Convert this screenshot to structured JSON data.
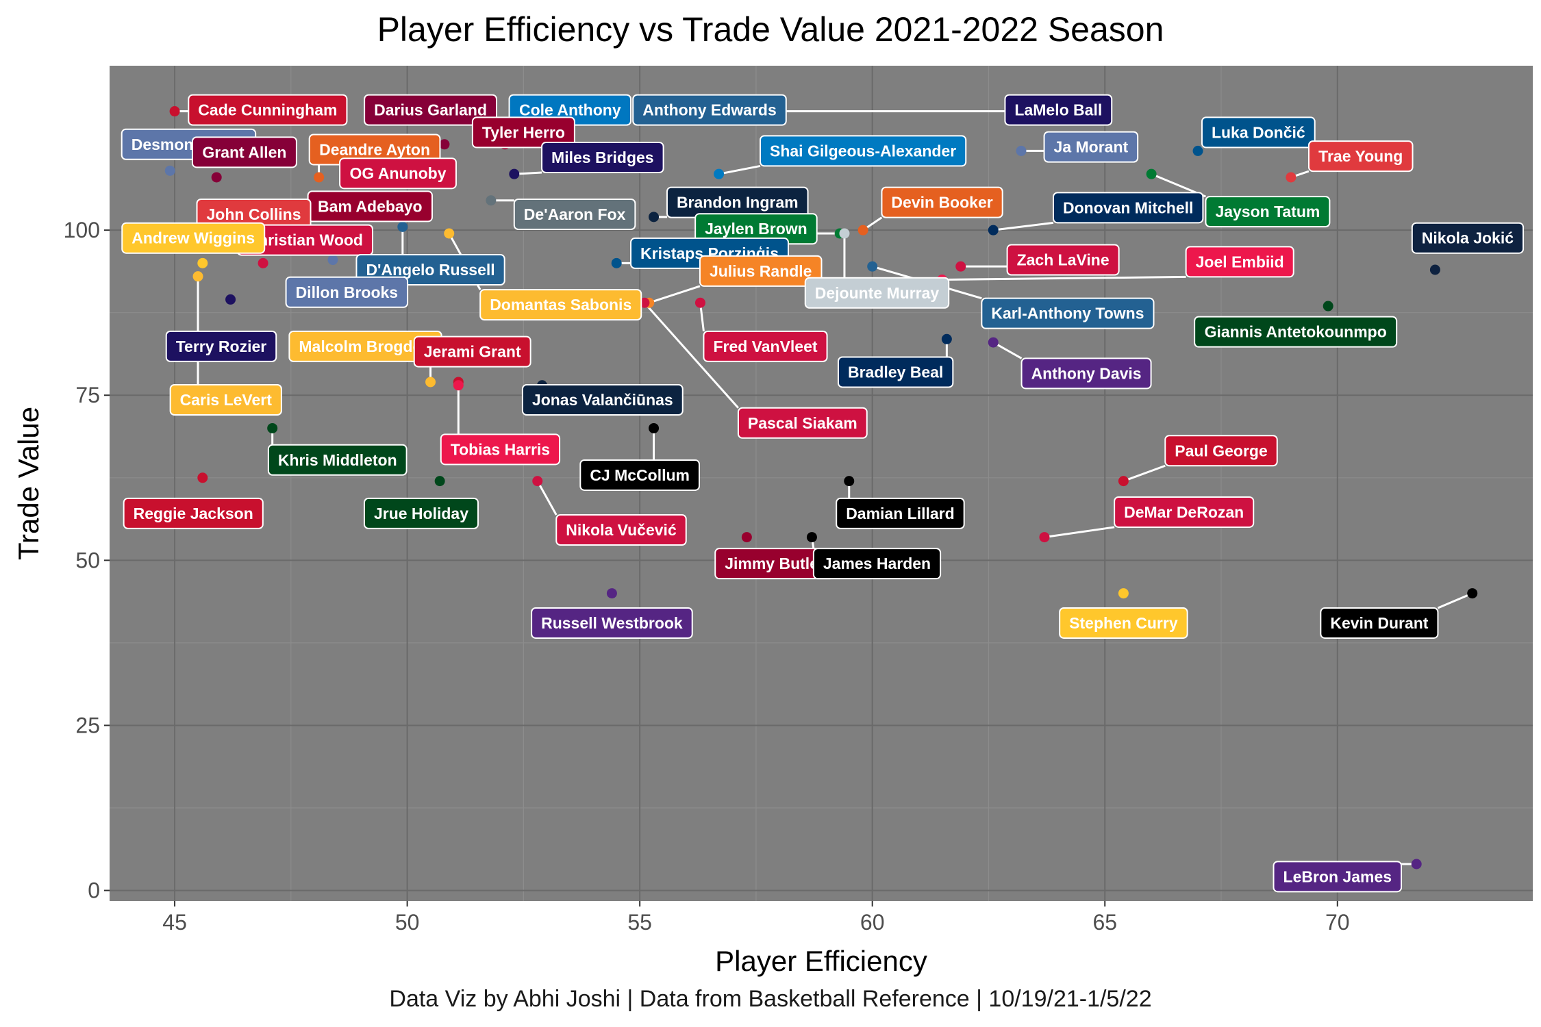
{
  "chart_data": {
    "type": "scatter",
    "title": "Player Efficiency vs Trade Value 2021-2022 Season",
    "caption": "Data Viz by Abhi Joshi | Data from Basketball Reference | 10/19/21-1/5/22",
    "xlabel": "Player Efficiency",
    "ylabel": "Trade Value",
    "xlim": [
      43.6,
      74.2
    ],
    "ylim": [
      -1.6,
      124.9
    ],
    "xticks": [
      45,
      50,
      55,
      60,
      65,
      70
    ],
    "yticks": [
      0,
      25,
      50,
      75,
      100
    ],
    "grid": true,
    "points": [
      {
        "name": "Cade Cunningham",
        "x": 45.0,
        "y": 118,
        "color": "#C8102E"
      },
      {
        "name": "Darius Garland",
        "x": 50.8,
        "y": 113,
        "color": "#860038"
      },
      {
        "name": "Cole Anthony",
        "x": 53.3,
        "y": 115,
        "color": "#0077C0"
      },
      {
        "name": "Anthony Edwards",
        "x": 56.7,
        "y": 118,
        "color": "#236192"
      },
      {
        "name": "LaMelo Ball",
        "x": 56.7,
        "y": 118,
        "color": "#1D1160"
      },
      {
        "name": "Tyler Herro",
        "x": 52.1,
        "y": 113,
        "color": "#98002E"
      },
      {
        "name": "Desmond Bane",
        "x": 44.9,
        "y": 109,
        "color": "#5D76A9"
      },
      {
        "name": "Deandre Ayton",
        "x": 48.1,
        "y": 108,
        "color": "#E56020"
      },
      {
        "name": "Grant Allen",
        "x": 45.9,
        "y": 108,
        "color": "#860038"
      },
      {
        "name": "OG Anunoby",
        "x": 50.3,
        "y": 104.5,
        "color": "#CE1141"
      },
      {
        "name": "Miles Bridges",
        "x": 52.3,
        "y": 108.5,
        "color": "#1D1160"
      },
      {
        "name": "Shai Gilgeous-Alexander",
        "x": 56.7,
        "y": 108.5,
        "color": "#007AC1"
      },
      {
        "name": "Ja Morant",
        "x": 63.2,
        "y": 112,
        "color": "#5D76A9"
      },
      {
        "name": "Luka Dončić",
        "x": 67.0,
        "y": 112,
        "color": "#00538C"
      },
      {
        "name": "Trae Young",
        "x": 69.0,
        "y": 108,
        "color": "#E03A3E"
      },
      {
        "name": "Jayson Tatum",
        "x": 66.0,
        "y": 108.5,
        "color": "#007A33"
      },
      {
        "name": "Bam Adebayo",
        "x": 49.0,
        "y": 104,
        "color": "#98002E"
      },
      {
        "name": "De'Aaron Fox",
        "x": 51.8,
        "y": 104.5,
        "color": "#63727A"
      },
      {
        "name": "Brandon Ingram",
        "x": 55.3,
        "y": 102,
        "color": "#0C2340"
      },
      {
        "name": "Devin Booker",
        "x": 59.8,
        "y": 100,
        "color": "#E56020"
      },
      {
        "name": "Donovan Mitchell",
        "x": 62.6,
        "y": 100,
        "color": "#002B5C"
      },
      {
        "name": "John Collins",
        "x": 46.3,
        "y": 104,
        "color": "#E03A3E"
      },
      {
        "name": "Christian Wood",
        "x": 46.9,
        "y": 95,
        "color": "#CE1141"
      },
      {
        "name": "Andrew Wiggins",
        "x": 45.6,
        "y": 95,
        "color": "#FFC72C"
      },
      {
        "name": "D'Angelo Russell",
        "x": 49.9,
        "y": 100.5,
        "color": "#236192"
      },
      {
        "name": "Jaylen Brown",
        "x": 59.3,
        "y": 99.5,
        "color": "#007A33"
      },
      {
        "name": "Kristaps Porziņģis",
        "x": 54.5,
        "y": 95,
        "color": "#00538C"
      },
      {
        "name": "Zach LaVine",
        "x": 61.9,
        "y": 94.5,
        "color": "#CE1141"
      },
      {
        "name": "Nikola Jokić",
        "x": 72.1,
        "y": 94,
        "color": "#0E2240"
      },
      {
        "name": "Julius Randle",
        "x": 55.2,
        "y": 89,
        "color": "#F58426"
      },
      {
        "name": "Dejounte Murray",
        "x": 59.4,
        "y": 99.5,
        "color": "#C4CED4"
      },
      {
        "name": "Joel Embiid",
        "x": 61.5,
        "y": 92.5,
        "color": "#ED174C"
      },
      {
        "name": "Karl-Anthony Towns",
        "x": 60.0,
        "y": 94.5,
        "color": "#236192"
      },
      {
        "name": "Terry Rozier",
        "x": 46.2,
        "y": 89.5,
        "color": "#1D1160"
      },
      {
        "name": "Dillon Brooks",
        "x": 48.4,
        "y": 95.5,
        "color": "#5D76A9"
      },
      {
        "name": "Domantas Sabonis",
        "x": 50.9,
        "y": 99.5,
        "color": "#FDBB30"
      },
      {
        "name": "Giannis Antetokounmpo",
        "x": 69.8,
        "y": 88.5,
        "color": "#00471B"
      },
      {
        "name": "Fred VanVleet",
        "x": 56.3,
        "y": 89,
        "color": "#CE1141"
      },
      {
        "name": "Pascal Siakam",
        "x": 55.1,
        "y": 89,
        "color": "#CE1141"
      },
      {
        "name": "Malcolm Brogdon",
        "x": 50.5,
        "y": 77,
        "color": "#FDBB30"
      },
      {
        "name": "Jerami Grant",
        "x": 51.1,
        "y": 77,
        "color": "#C8102E"
      },
      {
        "name": "Bradley Beal",
        "x": 61.6,
        "y": 83.5,
        "color": "#002B5C"
      },
      {
        "name": "Anthony Davis",
        "x": 62.6,
        "y": 83,
        "color": "#552583"
      },
      {
        "name": "Caris LeVert",
        "x": 45.5,
        "y": 93,
        "color": "#FDBB30"
      },
      {
        "name": "Jonas Valančiūnas",
        "x": 52.9,
        "y": 76.5,
        "color": "#0C2340"
      },
      {
        "name": "Khris Middleton",
        "x": 47.1,
        "y": 70,
        "color": "#00471B"
      },
      {
        "name": "Tobias Harris",
        "x": 51.1,
        "y": 76.5,
        "color": "#ED174C"
      },
      {
        "name": "CJ McCollum",
        "x": 55.3,
        "y": 70,
        "color": "#000000"
      },
      {
        "name": "Reggie Jackson",
        "x": 45.6,
        "y": 62.5,
        "color": "#C8102E"
      },
      {
        "name": "Jrue Holiday",
        "x": 50.7,
        "y": 62,
        "color": "#00471B"
      },
      {
        "name": "Nikola Vučević",
        "x": 52.8,
        "y": 62,
        "color": "#CE1141"
      },
      {
        "name": "Paul George",
        "x": 65.4,
        "y": 62,
        "color": "#C8102E"
      },
      {
        "name": "Damian Lillard",
        "x": 59.5,
        "y": 62,
        "color": "#000000"
      },
      {
        "name": "DeMar DeRozan",
        "x": 63.7,
        "y": 53.5,
        "color": "#CE1141"
      },
      {
        "name": "Jimmy Butler",
        "x": 57.3,
        "y": 53.5,
        "color": "#98002E"
      },
      {
        "name": "James Harden",
        "x": 58.7,
        "y": 53.5,
        "color": "#000000"
      },
      {
        "name": "Russell Westbrook",
        "x": 54.4,
        "y": 45,
        "color": "#552583"
      },
      {
        "name": "Stephen Curry",
        "x": 65.4,
        "y": 45,
        "color": "#FFC72C"
      },
      {
        "name": "Kevin Durant",
        "x": 72.9,
        "y": 45,
        "color": "#000000"
      },
      {
        "name": "LeBron James",
        "x": 71.7,
        "y": 4,
        "color": "#552583"
      }
    ]
  }
}
